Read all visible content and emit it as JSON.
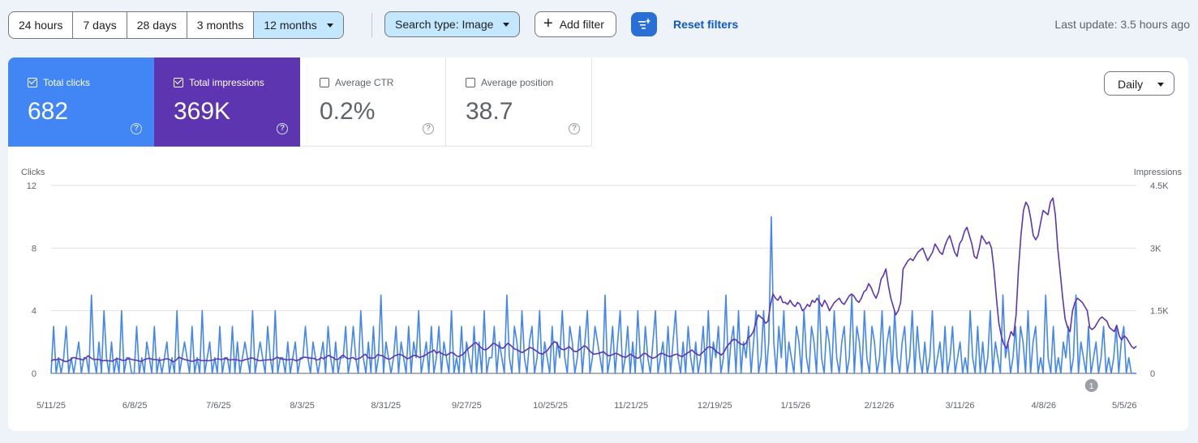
{
  "toolbar": {
    "ranges": [
      "24 hours",
      "7 days",
      "28 days",
      "3 months",
      "12 months"
    ],
    "active_range": "12 months",
    "search_type": "Search type: Image",
    "add_filter": "Add filter",
    "reset_filters": "Reset filters",
    "last_update": "Last update: 3.5 hours ago"
  },
  "metrics": {
    "clicks": {
      "label": "Total clicks",
      "value": "682",
      "checked": true,
      "color": "#4285f4"
    },
    "impressions": {
      "label": "Total impressions",
      "value": "369K",
      "checked": true,
      "color": "#5e35b1"
    },
    "ctr": {
      "label": "Average CTR",
      "value": "0.2%",
      "checked": false
    },
    "position": {
      "label": "Average position",
      "value": "38.7",
      "checked": false
    }
  },
  "granularity": "Daily",
  "annotation_marker": "1",
  "chart_data": {
    "type": "line",
    "xlabel": "",
    "ylabel": "Clicks",
    "ylabel_right": "Impressions",
    "ylim": [
      0,
      12
    ],
    "ylim_right": [
      0,
      4500
    ],
    "yticks": [
      "0",
      "4",
      "8",
      "12"
    ],
    "yticks_right": [
      "0",
      "1.5K",
      "3K",
      "4.5K"
    ],
    "x_ticks": [
      "5/11/25",
      "6/8/25",
      "7/6/25",
      "8/3/25",
      "8/31/25",
      "9/27/25",
      "10/25/25",
      "11/21/25",
      "12/19/25",
      "1/15/26",
      "2/12/26",
      "3/11/26",
      "4/8/26",
      "5/5/26"
    ],
    "x_start": "5/11/25",
    "x_end": "5/9/26",
    "series": [
      {
        "name": "Clicks",
        "color": "#4285f4",
        "axis": "left",
        "values": [
          0,
          3,
          0,
          1,
          0,
          1,
          3,
          0,
          1,
          0,
          1,
          2,
          0,
          1,
          1,
          0,
          5,
          1,
          0,
          2,
          0,
          4,
          1,
          0,
          2,
          0,
          1,
          0,
          4,
          0,
          1,
          1,
          0,
          0,
          3,
          0,
          1,
          0,
          2,
          1,
          0,
          3,
          0,
          1,
          0,
          1,
          2,
          0,
          1,
          0,
          4,
          0,
          1,
          2,
          1,
          0,
          3,
          0,
          1,
          0,
          4,
          0,
          1,
          2,
          0,
          1,
          0,
          3,
          0,
          1,
          1,
          0,
          3,
          0,
          2,
          0,
          1,
          2,
          1,
          0,
          4,
          0,
          1,
          2,
          1,
          0,
          3,
          1,
          0,
          4,
          0,
          1,
          1,
          0,
          2,
          0,
          1,
          2,
          0,
          1,
          1,
          3,
          1,
          0,
          2,
          1,
          0,
          1,
          2,
          0,
          3,
          1,
          0,
          2,
          0,
          1,
          1,
          3,
          0,
          1,
          3,
          1,
          0,
          4,
          1,
          0,
          2,
          0,
          3,
          0,
          1,
          5,
          0,
          2,
          1,
          0,
          1,
          3,
          0,
          2,
          1,
          0,
          3,
          0,
          2,
          1,
          4,
          0,
          1,
          2,
          0,
          3,
          0,
          1,
          3,
          0,
          2,
          1,
          0,
          4,
          0,
          1,
          0,
          3,
          0,
          2,
          1,
          0,
          3,
          0,
          2,
          0,
          4,
          0,
          1,
          1,
          3,
          0,
          2,
          1,
          0,
          5,
          1,
          0,
          3,
          2,
          0,
          4,
          1,
          0,
          2,
          3,
          0,
          1,
          4,
          0,
          2,
          1,
          0,
          3,
          0,
          2,
          1,
          4,
          1,
          0,
          3,
          2,
          0,
          1,
          3,
          0,
          2,
          4,
          0,
          1,
          3,
          2,
          1,
          0,
          5,
          0,
          1,
          3,
          0,
          2,
          4,
          0,
          1,
          3,
          0,
          2,
          0,
          4,
          1,
          0,
          3,
          1,
          0,
          2,
          4,
          0,
          1,
          2,
          0,
          3,
          0,
          2,
          4,
          1,
          0,
          2,
          0,
          3,
          1,
          0,
          2,
          0,
          1,
          3,
          0,
          4,
          0,
          2,
          1,
          3,
          0,
          1,
          5,
          0,
          2,
          3,
          0,
          4,
          0,
          2,
          1,
          3,
          0,
          2,
          4,
          0,
          1,
          4,
          0,
          2,
          10,
          2,
          0,
          3,
          1,
          4,
          0,
          2,
          1,
          0,
          3,
          2,
          0,
          4,
          1,
          0,
          3,
          2,
          0,
          5,
          1,
          0,
          3,
          2,
          0,
          4,
          1,
          0,
          2,
          3,
          0,
          1,
          5,
          0,
          3,
          2,
          0,
          4,
          1,
          0,
          3,
          2,
          0,
          1,
          4,
          0,
          2,
          3,
          0,
          4,
          1,
          0,
          2,
          3,
          0,
          1,
          4,
          0,
          3,
          1,
          0,
          2,
          0,
          1,
          4,
          0,
          1,
          2,
          0,
          3,
          0,
          1,
          3,
          0,
          1,
          2,
          0,
          1,
          0,
          4,
          1,
          0,
          3,
          0,
          2,
          0,
          1,
          4,
          0,
          2,
          1,
          0,
          5,
          1,
          2,
          0,
          1,
          3,
          0,
          3,
          2,
          0,
          4,
          0,
          2,
          3,
          0,
          1,
          0,
          5,
          1,
          0,
          3,
          0,
          1,
          0,
          2,
          1,
          3,
          0,
          1,
          5,
          0,
          2,
          1,
          0,
          3,
          0,
          1,
          2,
          0,
          1,
          3,
          0,
          1,
          0,
          1,
          3,
          0,
          2,
          3,
          0,
          1,
          0,
          0,
          0
        ]
      },
      {
        "name": "Impressions",
        "color": "#5e35b1",
        "axis": "right",
        "values": [
          290,
          330,
          320,
          350,
          330,
          300,
          280,
          300,
          330,
          380,
          370,
          350,
          340,
          320,
          360,
          420,
          380,
          340,
          330,
          340,
          320,
          300,
          310,
          300,
          300,
          290,
          330,
          350,
          340,
          310,
          310,
          340,
          350,
          330,
          320,
          310,
          290,
          290,
          330,
          350,
          360,
          340,
          330,
          330,
          310,
          320,
          330,
          350,
          340,
          300,
          280,
          320,
          390,
          360,
          340,
          320,
          310,
          290,
          290,
          320,
          330,
          310,
          300,
          310,
          300,
          310,
          320,
          340,
          350,
          330,
          340,
          360,
          330,
          320,
          330,
          330,
          320,
          300,
          300,
          330,
          340,
          360,
          370,
          340,
          320,
          300,
          310,
          320,
          320,
          330,
          320,
          350,
          390,
          360,
          340,
          340,
          320,
          330,
          340,
          320,
          300,
          330,
          350,
          390,
          380,
          370,
          360,
          360,
          320,
          330,
          380,
          350,
          390,
          430,
          400,
          370,
          330,
          340,
          400,
          440,
          380,
          350,
          360,
          380,
          330,
          350,
          370,
          420,
          460,
          380,
          370,
          360,
          380,
          450,
          430,
          420,
          380,
          350,
          340,
          380,
          420,
          440,
          460,
          430,
          400,
          350,
          370,
          410,
          430,
          420,
          380,
          400,
          420,
          460,
          500,
          520,
          560,
          480,
          520,
          480,
          450,
          430,
          470,
          500,
          480,
          420,
          400,
          430,
          470,
          540,
          600,
          650,
          700,
          740,
          680,
          620,
          580,
          560,
          600,
          660,
          720,
          700,
          660,
          620,
          600,
          650,
          720,
          680,
          620,
          580,
          560,
          520,
          500,
          540,
          580,
          620,
          600,
          560,
          520,
          480,
          460,
          500,
          540,
          620,
          700,
          760,
          720,
          620,
          580,
          560,
          600,
          640,
          580,
          530,
          520,
          560,
          600,
          660,
          640,
          560,
          500,
          460,
          470,
          480,
          500,
          520,
          460,
          420,
          430,
          460,
          480,
          460,
          420,
          400,
          380,
          420,
          460,
          420,
          380,
          360,
          400,
          460,
          480,
          430,
          390,
          360,
          380,
          420,
          470,
          480,
          450,
          420,
          400,
          420,
          450,
          460,
          420,
          400,
          440,
          480,
          520,
          560,
          500,
          460,
          430,
          480,
          540,
          600,
          640,
          620,
          580,
          520,
          480,
          440,
          500,
          620,
          700,
          760,
          820,
          800,
          740,
          700,
          680,
          720,
          860,
          900,
          1000,
          1200,
          1400,
          1350,
          1300,
          1200,
          1250,
          1650,
          1900,
          1800,
          1750,
          1850,
          1700,
          1700,
          1650,
          1750,
          1650,
          1600,
          1700,
          1650,
          1500,
          1550,
          1650,
          1600,
          1750,
          1700,
          1800,
          1700,
          1600,
          1750,
          1650,
          1500,
          1600,
          1700,
          1750,
          1800,
          1700,
          1650,
          1750,
          1850,
          1900,
          1850,
          1750,
          1700,
          1800,
          1950,
          2000,
          2150,
          2050,
          1900,
          1800,
          1950,
          2250,
          2350,
          2500,
          2100,
          1800,
          1600,
          1400,
          1500,
          1700,
          2500,
          2600,
          2700,
          2750,
          2700,
          2800,
          2900,
          2950,
          3000,
          2850,
          2700,
          2800,
          2900,
          3100,
          3000,
          2900,
          2850,
          3050,
          3200,
          3300,
          3100,
          2900,
          2800,
          3100,
          3200,
          3400,
          3500,
          3300,
          3100,
          2800,
          2750,
          3000,
          3300,
          3200,
          3100,
          3150,
          3000,
          2500,
          1800,
          1200,
          900,
          700,
          600,
          800,
          1000,
          900,
          1400,
          2500,
          3300,
          3900,
          4100,
          4000,
          3700,
          3300,
          3200,
          3300,
          3600,
          3900,
          3850,
          3800,
          4100,
          4200,
          3800,
          3000,
          2400,
          1800,
          1300,
          1100,
          1000,
          1500,
          1700,
          1800,
          1750,
          1700,
          1600,
          1500,
          1100,
          1050,
          1100,
          1200,
          1300,
          1350,
          1300,
          1250,
          1100,
          1050,
          1000,
          1150,
          900,
          800,
          900,
          850,
          750,
          650,
          600,
          650
        ]
      }
    ],
    "grid": true,
    "legend": "none"
  }
}
